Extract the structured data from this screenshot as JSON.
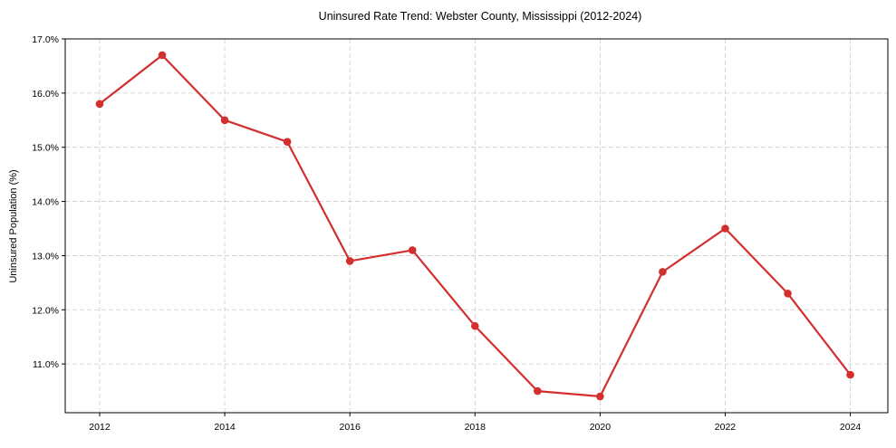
{
  "chart_data": {
    "type": "line",
    "title": "Uninsured Rate Trend: Webster County, Mississippi (2012-2024)",
    "xlabel": "",
    "ylabel": "Uninsured Population (%)",
    "x": [
      2012,
      2013,
      2014,
      2015,
      2016,
      2017,
      2018,
      2019,
      2020,
      2021,
      2022,
      2023,
      2024
    ],
    "series": [
      {
        "name": "Uninsured Rate",
        "values": [
          15.8,
          16.7,
          15.5,
          15.1,
          12.9,
          13.1,
          11.7,
          10.5,
          10.4,
          12.7,
          13.5,
          12.3,
          10.8
        ],
        "color": "#d32f2f",
        "marker": "circle"
      }
    ],
    "xticks": [
      2012,
      2014,
      2016,
      2018,
      2020,
      2022,
      2024
    ],
    "xtick_labels": [
      "2012",
      "2014",
      "2016",
      "2018",
      "2020",
      "2022",
      "2024"
    ],
    "yticks": [
      11,
      12,
      13,
      14,
      15,
      16,
      17
    ],
    "ytick_labels": [
      "11.0%",
      "12.0%",
      "13.0%",
      "14.0%",
      "15.0%",
      "16.0%",
      "17.0%"
    ],
    "xlim": [
      2011.45,
      2024.6
    ],
    "ylim": [
      10.1,
      17.0
    ],
    "grid": true,
    "legend": null
  }
}
